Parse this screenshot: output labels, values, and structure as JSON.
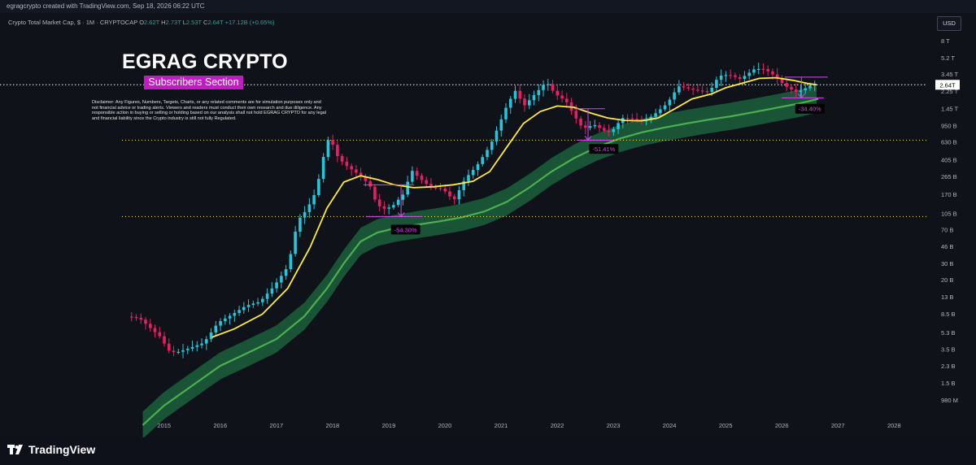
{
  "header": {
    "credit": "egragcrypto created with TradingView.com, Sep 18, 2026 06:22 UTC"
  },
  "legend": {
    "title": "Crypto Total Market Cap, $ · 1M · CRYPTOCAP",
    "o_label": "O",
    "o_value": "2.62T",
    "h_label": "H",
    "h_value": "2.73T",
    "l_label": "L",
    "l_value": "2.53T",
    "c_label": "C",
    "c_value": "2.64T",
    "change": "+17.12B (+0.65%)"
  },
  "currency_button": "USD",
  "overlay": {
    "brand": "EGRAG CRYPTO",
    "subscribers": "Subscribers Section",
    "disclaimer": "Disclaimer: Any Figures, Numbers, Targets, Charts, or any related comments are for simulation purposes only and not financial advice or trading alerts. Viewers and readers must conduct their own research and due diligence. Any responsible action in buying or selling or holding based on our analysis shall not hold EGRAG CRYPTO for any legal and financial liability since the Crypto industry is still not fully Regulated."
  },
  "footer": {
    "logo_text": "TradingView"
  },
  "colors": {
    "up": "#26c6da",
    "down": "#e91e63",
    "ma_yellow": "#ffeb3b",
    "band": "#1e6b40",
    "band_line": "#4caf50",
    "magenta": "#e040fb",
    "level": "#ffee58"
  },
  "chart_data": {
    "type": "candlestick",
    "title": "",
    "y_scale": "log",
    "ylim": [
      0.00065,
      12
    ],
    "xlim": [
      2014.25,
      2028.3
    ],
    "y_ticks": [
      {
        "label": "8 T",
        "v": 8
      },
      {
        "label": "5.2 T",
        "v": 5.2
      },
      {
        "label": "3.45 T",
        "v": 3.45
      },
      {
        "label": "2.25 T",
        "v": 2.25
      },
      {
        "label": "1.45 T",
        "v": 1.45
      },
      {
        "label": "950 B",
        "v": 0.95
      },
      {
        "label": "630 B",
        "v": 0.63
      },
      {
        "label": "405 B",
        "v": 0.405
      },
      {
        "label": "265 B",
        "v": 0.265
      },
      {
        "label": "170 B",
        "v": 0.17
      },
      {
        "label": "105 B",
        "v": 0.105
      },
      {
        "label": "70 B",
        "v": 0.07
      },
      {
        "label": "46 B",
        "v": 0.046
      },
      {
        "label": "30 B",
        "v": 0.03
      },
      {
        "label": "20 B",
        "v": 0.02
      },
      {
        "label": "13 B",
        "v": 0.013
      },
      {
        "label": "8.5 B",
        "v": 0.0085
      },
      {
        "label": "5.3 B",
        "v": 0.0053
      },
      {
        "label": "3.5 B",
        "v": 0.0035
      },
      {
        "label": "2.3 B",
        "v": 0.0023
      },
      {
        "label": "1.5 B",
        "v": 0.0015
      },
      {
        "label": "980 M",
        "v": 0.00098
      }
    ],
    "x_ticks": [
      "2015",
      "2016",
      "2017",
      "2018",
      "2019",
      "2020",
      "2021",
      "2022",
      "2023",
      "2024",
      "2025",
      "2026",
      "2027",
      "2028"
    ],
    "current_price": {
      "label": "2.64T",
      "v": 2.64
    },
    "levels": [
      0.66,
      0.097
    ],
    "path": [
      [
        2014.42,
        0.0079
      ],
      [
        2014.6,
        0.0076
      ],
      [
        2014.8,
        0.0059
      ],
      [
        2015.0,
        0.0046
      ],
      [
        2015.1,
        0.0034
      ],
      [
        2015.25,
        0.0032
      ],
      [
        2015.5,
        0.0036
      ],
      [
        2015.75,
        0.0041
      ],
      [
        2016.0,
        0.0068
      ],
      [
        2016.25,
        0.0083
      ],
      [
        2016.5,
        0.0104
      ],
      [
        2016.75,
        0.0115
      ],
      [
        2017.0,
        0.017
      ],
      [
        2017.25,
        0.028
      ],
      [
        2017.42,
        0.088
      ],
      [
        2017.58,
        0.115
      ],
      [
        2017.75,
        0.185
      ],
      [
        2017.92,
        0.57
      ],
      [
        2018.0,
        0.76
      ],
      [
        2018.08,
        0.48
      ],
      [
        2018.25,
        0.36
      ],
      [
        2018.5,
        0.28
      ],
      [
        2018.7,
        0.215
      ],
      [
        2018.83,
        0.13
      ],
      [
        2018.96,
        0.118
      ],
      [
        2019.1,
        0.124
      ],
      [
        2019.3,
        0.17
      ],
      [
        2019.45,
        0.31
      ],
      [
        2019.6,
        0.25
      ],
      [
        2019.8,
        0.2
      ],
      [
        2020.0,
        0.195
      ],
      [
        2020.2,
        0.145
      ],
      [
        2020.4,
        0.25
      ],
      [
        2020.6,
        0.34
      ],
      [
        2020.85,
        0.58
      ],
      [
        2021.0,
        0.95
      ],
      [
        2021.15,
        1.6
      ],
      [
        2021.3,
        2.3
      ],
      [
        2021.45,
        1.55
      ],
      [
        2021.6,
        1.95
      ],
      [
        2021.85,
        2.85
      ],
      [
        2022.0,
        2.1
      ],
      [
        2022.2,
        1.75
      ],
      [
        2022.35,
        1.2
      ],
      [
        2022.5,
        0.88
      ],
      [
        2022.7,
        0.97
      ],
      [
        2022.9,
        0.82
      ],
      [
        2023.0,
        0.8
      ],
      [
        2023.2,
        1.15
      ],
      [
        2023.4,
        1.12
      ],
      [
        2023.6,
        1.05
      ],
      [
        2023.8,
        1.3
      ],
      [
        2024.0,
        1.65
      ],
      [
        2024.2,
        2.55
      ],
      [
        2024.5,
        2.3
      ],
      [
        2024.75,
        2.2
      ],
      [
        2024.92,
        3.3
      ],
      [
        2025.1,
        3.4
      ],
      [
        2025.3,
        3.05
      ],
      [
        2025.55,
        3.9
      ],
      [
        2025.7,
        3.95
      ],
      [
        2025.85,
        3.55
      ],
      [
        2026.0,
        2.9
      ],
      [
        2026.15,
        2.45
      ],
      [
        2026.3,
        2.2
      ],
      [
        2026.45,
        2.4
      ],
      [
        2026.55,
        2.62
      ],
      [
        2026.62,
        2.64
      ]
    ],
    "ma_fast": [
      [
        2015.85,
        0.0047
      ],
      [
        2016.25,
        0.0058
      ],
      [
        2016.75,
        0.0084
      ],
      [
        2017.2,
        0.016
      ],
      [
        2017.6,
        0.045
      ],
      [
        2017.9,
        0.12
      ],
      [
        2018.2,
        0.23
      ],
      [
        2018.5,
        0.27
      ],
      [
        2018.8,
        0.245
      ],
      [
        2019.1,
        0.215
      ],
      [
        2019.45,
        0.2
      ],
      [
        2019.8,
        0.205
      ],
      [
        2020.15,
        0.215
      ],
      [
        2020.5,
        0.235
      ],
      [
        2020.8,
        0.3
      ],
      [
        2021.1,
        0.55
      ],
      [
        2021.4,
        1.0
      ],
      [
        2021.7,
        1.35
      ],
      [
        2022.0,
        1.55
      ],
      [
        2022.3,
        1.5
      ],
      [
        2022.6,
        1.3
      ],
      [
        2022.9,
        1.15
      ],
      [
        2023.2,
        1.08
      ],
      [
        2023.5,
        1.07
      ],
      [
        2023.8,
        1.15
      ],
      [
        2024.1,
        1.45
      ],
      [
        2024.4,
        1.85
      ],
      [
        2024.75,
        2.1
      ],
      [
        2025.0,
        2.45
      ],
      [
        2025.3,
        2.75
      ],
      [
        2025.6,
        3.1
      ],
      [
        2025.9,
        3.15
      ],
      [
        2026.2,
        2.95
      ],
      [
        2026.5,
        2.7
      ],
      [
        2026.62,
        2.65
      ]
    ],
    "band_mid": [
      [
        2014.62,
        0.00052
      ],
      [
        2015.0,
        0.00085
      ],
      [
        2015.5,
        0.0014
      ],
      [
        2016.0,
        0.0023
      ],
      [
        2016.5,
        0.0032
      ],
      [
        2017.0,
        0.0045
      ],
      [
        2017.5,
        0.008
      ],
      [
        2017.9,
        0.016
      ],
      [
        2018.2,
        0.03
      ],
      [
        2018.5,
        0.052
      ],
      [
        2018.8,
        0.065
      ],
      [
        2019.1,
        0.072
      ],
      [
        2019.5,
        0.079
      ],
      [
        2019.9,
        0.086
      ],
      [
        2020.3,
        0.095
      ],
      [
        2020.7,
        0.11
      ],
      [
        2021.1,
        0.14
      ],
      [
        2021.5,
        0.2
      ],
      [
        2021.9,
        0.3
      ],
      [
        2022.3,
        0.42
      ],
      [
        2022.7,
        0.55
      ],
      [
        2023.1,
        0.68
      ],
      [
        2023.5,
        0.8
      ],
      [
        2023.9,
        0.9
      ],
      [
        2024.3,
        1.0
      ],
      [
        2024.7,
        1.1
      ],
      [
        2025.1,
        1.2
      ],
      [
        2025.5,
        1.33
      ],
      [
        2025.9,
        1.48
      ],
      [
        2026.3,
        1.65
      ],
      [
        2026.65,
        1.85
      ]
    ],
    "band_width": 0.34,
    "annotations": [
      {
        "label": "-54.30%",
        "x": 2019.3,
        "v": 0.07
      },
      {
        "label": "-51.41%",
        "x": 2022.83,
        "v": 0.53
      },
      {
        "label": "-34.40%",
        "x": 2026.5,
        "v": 1.45
      }
    ]
  }
}
